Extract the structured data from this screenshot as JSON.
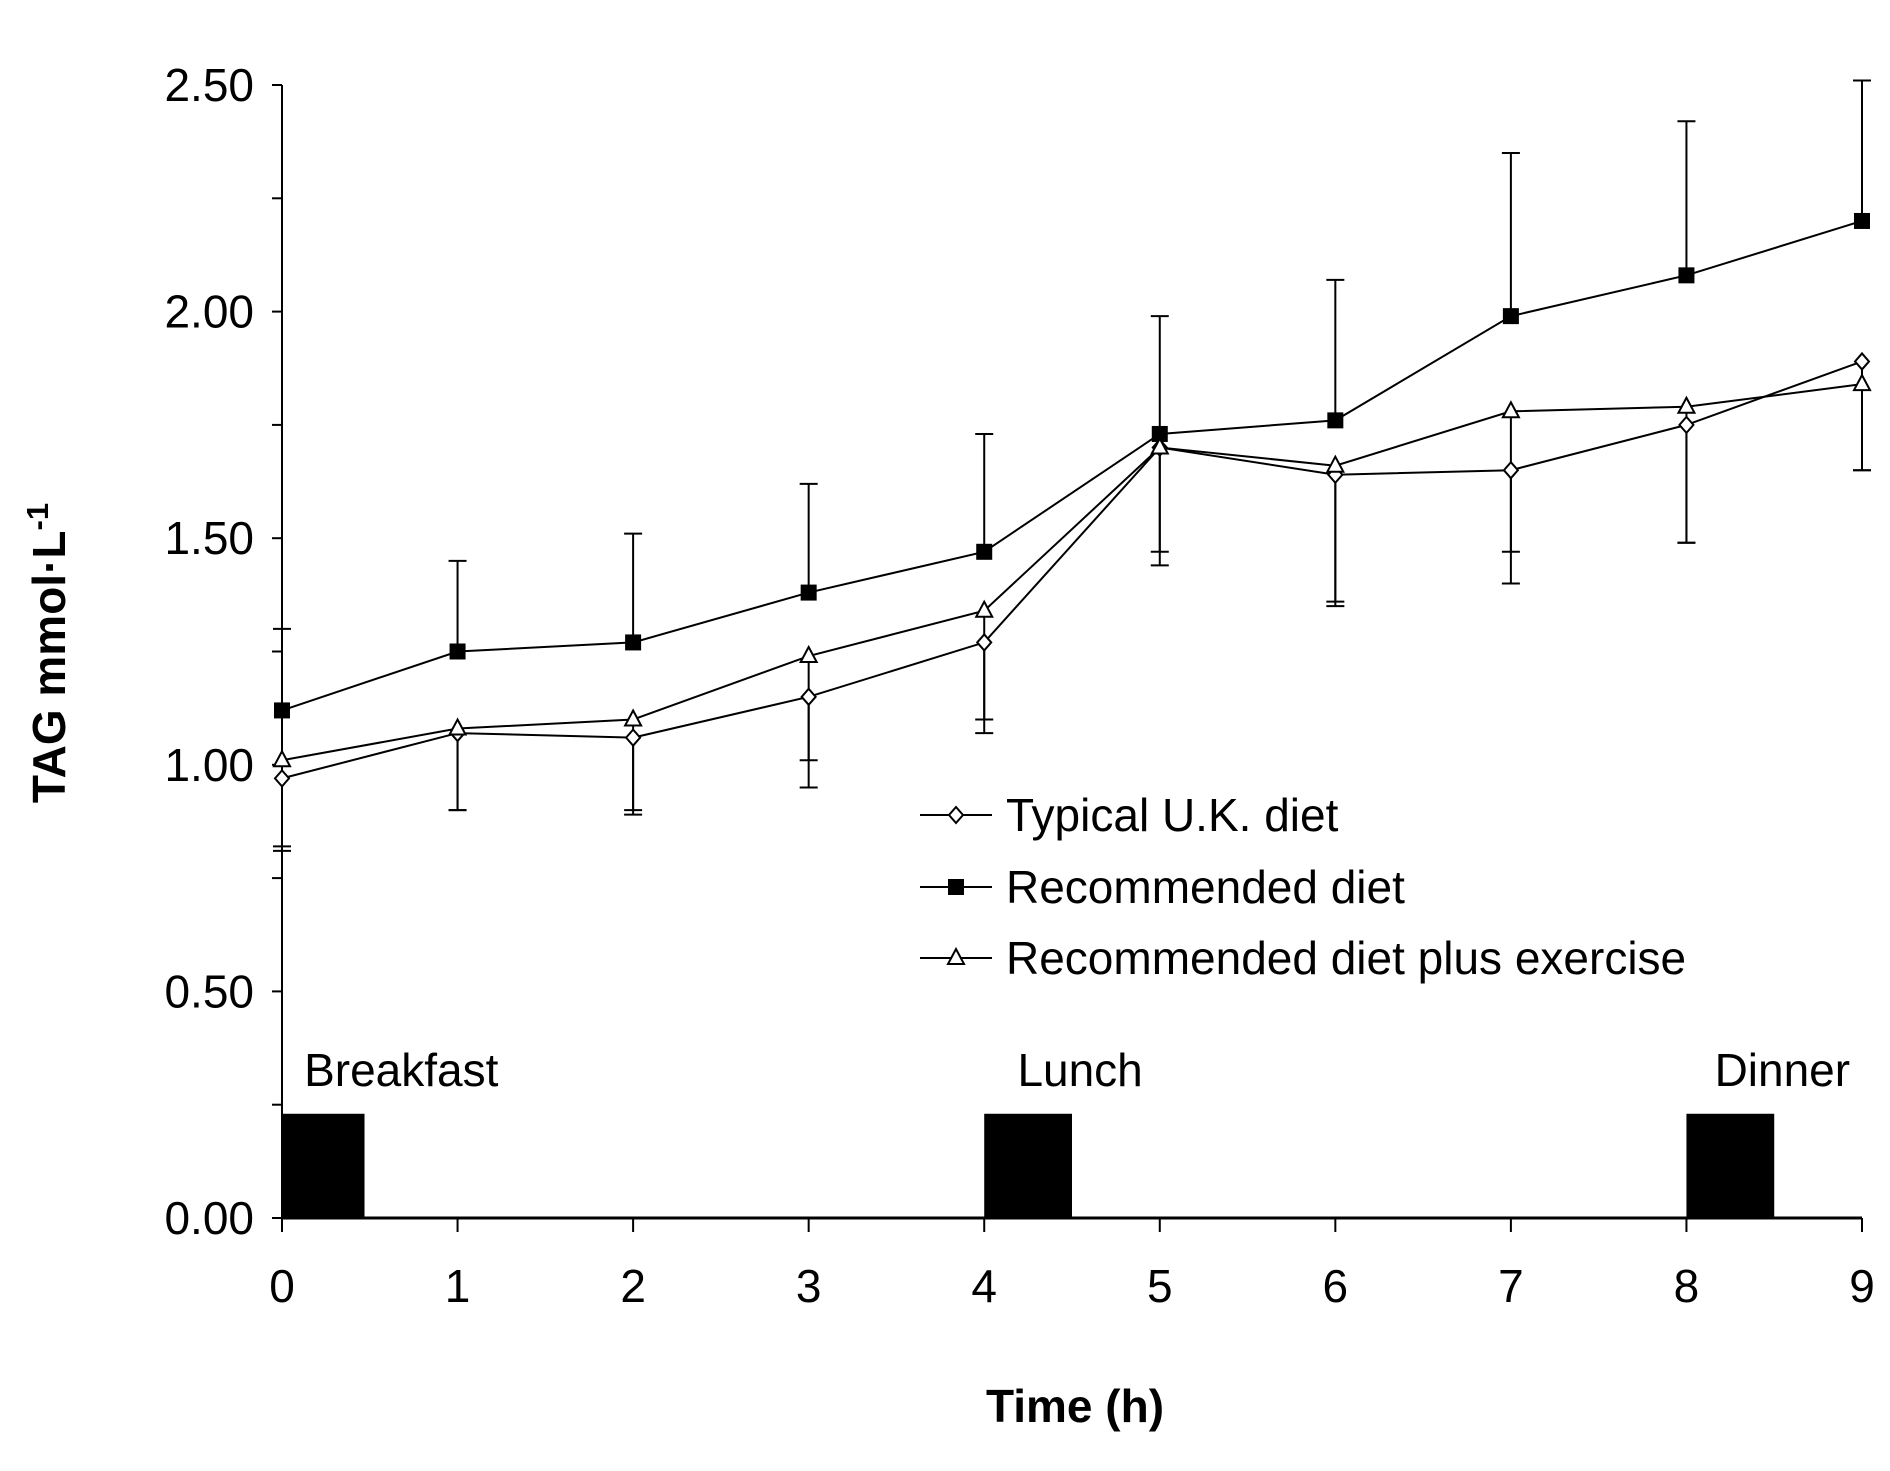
{
  "chart_data": {
    "type": "line",
    "title": "",
    "xlabel": "Time (h)",
    "ylabel": "TAG mmol·L",
    "ylabel_superscript": "-1",
    "xlim": [
      0,
      9
    ],
    "ylim": [
      0,
      2.5
    ],
    "x_ticks": [
      "0",
      "1",
      "2",
      "3",
      "4",
      "5",
      "6",
      "7",
      "8",
      "9"
    ],
    "y_ticks": [
      "0.00",
      "0.50",
      "1.00",
      "1.50",
      "2.00",
      "2.50"
    ],
    "grid": false,
    "legend_position": "center-right",
    "x": [
      0,
      1,
      2,
      3,
      4,
      5,
      6,
      7,
      8,
      9
    ],
    "series": [
      {
        "name": "Typical U.K. diet",
        "marker": "diamond-open",
        "values": [
          0.97,
          1.07,
          1.06,
          1.15,
          1.27,
          1.7,
          1.64,
          1.65,
          1.75,
          1.89
        ],
        "errors": [
          0.15,
          0.17,
          0.17,
          0.2,
          0.2,
          0.26,
          0.29,
          0.25,
          0.26,
          0.24
        ],
        "error_direction": "down"
      },
      {
        "name": "Recommended diet",
        "marker": "square-filled",
        "values": [
          1.12,
          1.25,
          1.27,
          1.38,
          1.47,
          1.73,
          1.76,
          1.99,
          2.08,
          2.2
        ],
        "errors": [
          0.18,
          0.2,
          0.24,
          0.24,
          0.26,
          0.26,
          0.31,
          0.36,
          0.34,
          0.31
        ],
        "error_direction": "up"
      },
      {
        "name": "Recommended diet plus exercise",
        "marker": "triangle-open",
        "values": [
          1.01,
          1.08,
          1.1,
          1.24,
          1.34,
          1.7,
          1.66,
          1.78,
          1.79,
          1.84
        ],
        "errors": [
          0.2,
          0.18,
          0.2,
          0.23,
          0.24,
          0.23,
          0.3,
          0.31,
          0.3,
          0.19
        ],
        "error_direction": "down"
      }
    ],
    "meals": [
      {
        "label": "Breakfast",
        "start": 0.0,
        "end": 0.47,
        "height": 0.23
      },
      {
        "label": "Lunch",
        "start": 4.0,
        "end": 4.5,
        "height": 0.23
      },
      {
        "label": "Dinner",
        "start": 8.0,
        "end": 8.5,
        "height": 0.23
      }
    ],
    "colors": {
      "line": "#000000",
      "marker_open_fill": "#ffffff",
      "marker_filled": "#000000",
      "meal_bar": "#000000"
    }
  }
}
